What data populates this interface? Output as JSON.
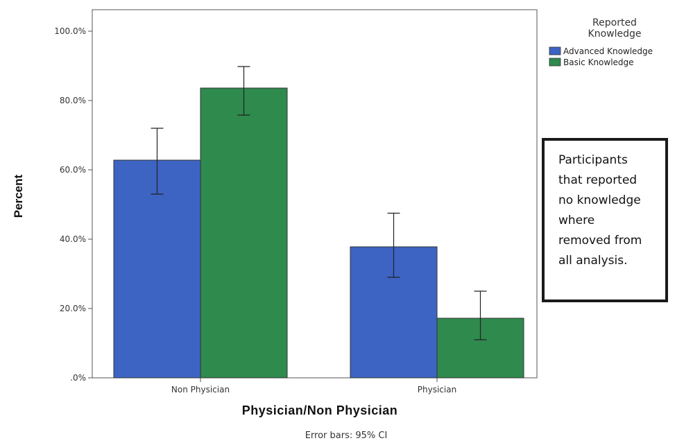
{
  "chart_data": {
    "type": "bar",
    "categories": [
      "Non Physician",
      "Physician"
    ],
    "series": [
      {
        "name": "Advanced Knowledge",
        "color": "#3d64c3",
        "values": [
          62.8,
          37.8
        ],
        "ci_low": [
          53.0,
          29.0
        ],
        "ci_high": [
          72.0,
          47.5
        ]
      },
      {
        "name": "Basic Knowledge",
        "color": "#2f8a4e",
        "values": [
          83.6,
          17.2
        ],
        "ci_low": [
          75.8,
          11.0
        ],
        "ci_high": [
          89.8,
          25.0
        ]
      }
    ],
    "xlabel": "Physician/Non Physician",
    "ylabel": "Percent",
    "ylim": [
      0,
      100
    ],
    "yticks": [
      ".0%",
      "20.0%",
      "40.0%",
      "60.0%",
      "80.0%",
      "100.0%"
    ],
    "grid": false,
    "legend": {
      "title_lines": [
        "Reported",
        "Knowledge"
      ],
      "placement": "top-right"
    },
    "footnote": "Error bars: 95% CI",
    "annotation": {
      "lines": [
        "Participants",
        "that reported",
        "no knowledge",
        "where",
        "removed from",
        "all analysis."
      ]
    }
  }
}
